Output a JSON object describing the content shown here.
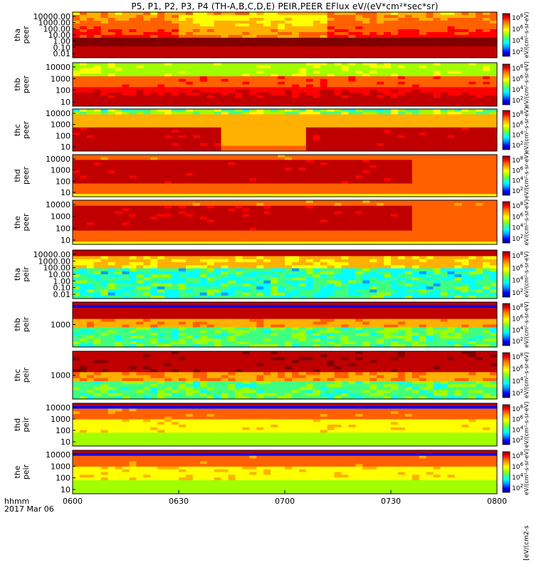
{
  "title": "P5, P1, P2, P3, P4 (TH-A,B,C,D,E) PEIR,PEER EFlux eV/(eV*cm²*sec*sr)",
  "time_axis": {
    "ticks": [
      "0600",
      "0630",
      "0700",
      "0730",
      "0800"
    ],
    "corner_label_1": "hhmm",
    "corner_label_2": "2017 Mar 06"
  },
  "colorbar": {
    "exp_labels": [
      "8",
      "6",
      "4",
      "2"
    ],
    "unit_label_peer": "eV/(cm²-s-sr-eV)",
    "unit_label_peir": "eV/(cm²-s-sr-eV)",
    "bottom_label": "[eV/(cm2-s"
  },
  "colors": {
    "scale": [
      "#000080",
      "#0000ff",
      "#00a0ff",
      "#00ffff",
      "#40ff80",
      "#a0ff00",
      "#ffff00",
      "#ffb000",
      "#ff6000",
      "#ff0000",
      "#c00000",
      "#800000"
    ]
  },
  "chart_data": {
    "type": "heatmap",
    "x_range": [
      "0600",
      "0800"
    ],
    "x_unit": "hhmm (UT)",
    "value_scale": "log10 energy flux",
    "panels": [
      {
        "name": "tha peer",
        "label_1": "tha",
        "label_2": "peer",
        "y_ticks": [
          "10000.00",
          "1000.00",
          "100.00",
          "10.00",
          "1.00",
          "0.10",
          "0.01"
        ],
        "y_log_range": [
          -2,
          4.3
        ],
        "profile": "peer_wide"
      },
      {
        "name": "thb peer",
        "label_1": "thb",
        "label_2": "peer",
        "y_ticks": [
          "10000",
          "1000",
          "100",
          "10"
        ],
        "y_log_range": [
          0.8,
          4.1
        ],
        "profile": "peer_b"
      },
      {
        "name": "thc peer",
        "label_1": "thc",
        "label_2": "peer",
        "y_ticks": [
          "10000",
          "1000",
          "100",
          "10"
        ],
        "y_log_range": [
          0.8,
          4.1
        ],
        "profile": "peer_c"
      },
      {
        "name": "thd peer",
        "label_1": "thd",
        "label_2": "peer",
        "y_ticks": [
          "10000",
          "1000",
          "100",
          "10"
        ],
        "y_log_range": [
          0.8,
          4.3
        ],
        "profile": "peer_d"
      },
      {
        "name": "the peer",
        "label_1": "the",
        "label_2": "peer",
        "y_ticks": [
          "10000",
          "1000",
          "100",
          "10"
        ],
        "y_log_range": [
          0.8,
          4.3
        ],
        "profile": "peer_d"
      },
      {
        "name": "tha peir",
        "label_1": "tha",
        "label_2": "peir",
        "y_ticks": [
          "10000.00",
          "1000.00",
          "100.00",
          "10.00",
          "1.00",
          "0.10",
          "0.01"
        ],
        "y_log_range": [
          -2,
          4.3
        ],
        "profile": "peir_wide"
      },
      {
        "name": "thb peir",
        "label_1": "thb",
        "label_2": "peir",
        "y_ticks": [
          "1000"
        ],
        "y_log_range": [
          2,
          4.3
        ],
        "profile": "peir_narrow"
      },
      {
        "name": "thc peir",
        "label_1": "thc",
        "label_2": "peir",
        "y_ticks": [
          "1000"
        ],
        "y_log_range": [
          2,
          4.3
        ],
        "profile": "peir_narrow_c"
      },
      {
        "name": "thd peir",
        "label_1": "thd",
        "label_2": "peir",
        "y_ticks": [
          "10000",
          "1000",
          "100",
          "10"
        ],
        "y_log_range": [
          0.8,
          4.3
        ],
        "profile": "peir_de"
      },
      {
        "name": "the peir",
        "label_1": "the",
        "label_2": "peir",
        "y_ticks": [
          "10000",
          "1000",
          "100",
          "10"
        ],
        "y_log_range": [
          0.8,
          4.3
        ],
        "profile": "peir_de"
      }
    ]
  }
}
